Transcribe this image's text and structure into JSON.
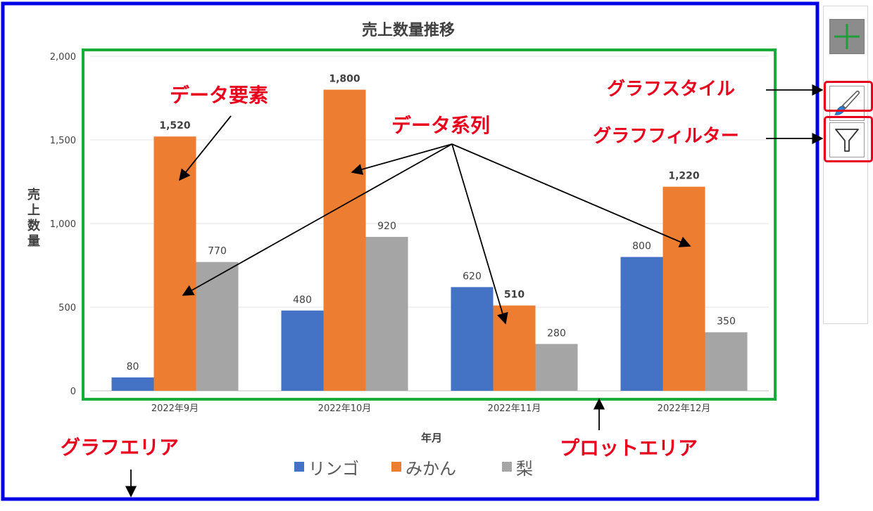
{
  "colors": {
    "chart_area_border": "#0000e6",
    "plot_area_border": "#1aab3d",
    "callout_text": "#e8001c",
    "highlight": "#e8001c",
    "add_button_plus": "#1e9e3a"
  },
  "chart_data": {
    "type": "bar",
    "title": "売上数量推移",
    "xlabel": "年月",
    "ylabel": "売上数量",
    "ylim": [
      0,
      2000
    ],
    "yticks": [
      "0",
      "500",
      "1,000",
      "1,500",
      "2,000"
    ],
    "categories": [
      "2022年9月",
      "2022年10月",
      "2022年11月",
      "2022年12月"
    ],
    "series": [
      {
        "name": "リンゴ",
        "color": "#4472c4",
        "values": [
          80,
          480,
          620,
          800
        ],
        "labels": [
          "80",
          "480",
          "620",
          "800"
        ]
      },
      {
        "name": "みかん",
        "color": "#ed7d31",
        "values": [
          1520,
          1800,
          510,
          1220
        ],
        "labels": [
          "1,520",
          "1,800",
          "510",
          "1,220"
        ]
      },
      {
        "name": "梨",
        "color": "#a5a5a5",
        "values": [
          770,
          920,
          280,
          350
        ],
        "labels": [
          "770",
          "920",
          "280",
          "350"
        ]
      }
    ],
    "grid": true,
    "legend_position": "bottom"
  },
  "annotations": {
    "data_element": "データ要素",
    "data_series": "データ系列",
    "chart_style": "グラフスタイル",
    "chart_filter": "グラフフィルター",
    "chart_area": "グラフエリア",
    "plot_area": "プロットエリア"
  },
  "side_panel": {
    "buttons": [
      {
        "icon": "plus-icon"
      },
      {
        "icon": "paintbrush-icon"
      },
      {
        "icon": "funnel-icon"
      }
    ]
  }
}
